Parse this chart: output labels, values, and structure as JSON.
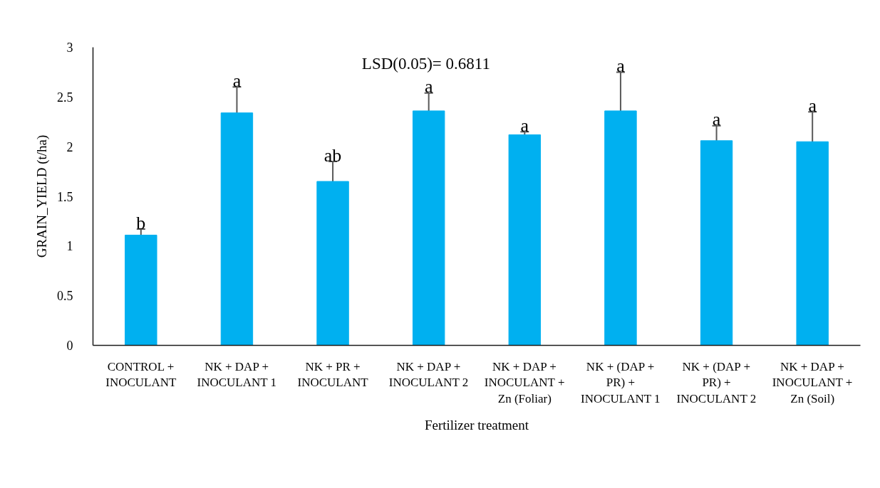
{
  "chart_data": {
    "type": "bar",
    "xlabel": "Fertilizer treatment",
    "ylabel": "GRAIN_YIELD (t/ha)",
    "categories": [
      "CONTROL + INOCULANT",
      "NK + DAP + INOCULANT 1",
      "NK + PR + INOCULANT",
      "NK + DAP + INOCULANT 2",
      "NK + DAP + INOCULANT + Zn (Foliar)",
      "NK + (DAP + PR) + INOCULANT 1",
      "NK + (DAP + PR) + INOCULANT 2",
      "NK + DAP + INOCULANT + Zn (Soil)"
    ],
    "values": [
      1.11,
      2.34,
      1.65,
      2.36,
      2.12,
      2.36,
      2.06,
      2.05
    ],
    "errors": [
      0.06,
      0.26,
      0.2,
      0.18,
      0.03,
      0.39,
      0.15,
      0.3
    ],
    "color": "#00b0f0",
    "ylim": [
      0,
      3
    ],
    "yticks": [
      0,
      0.5,
      1,
      1.5,
      2,
      2.5,
      3
    ],
    "grid": false,
    "annotations": [
      "b",
      "a",
      "ab",
      "a",
      "a",
      "a",
      "a",
      "a",
      "LSD(0.05)= 0.6811"
    ]
  }
}
